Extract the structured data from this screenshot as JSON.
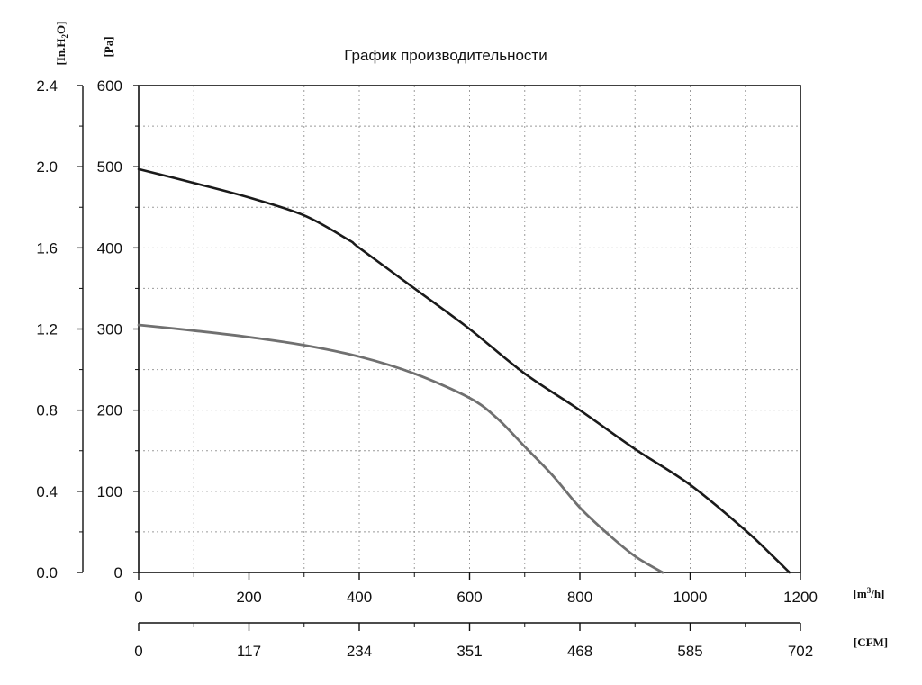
{
  "chart_data": {
    "type": "line",
    "title": "График производительности",
    "x_primary": {
      "unit_label": "m3/h",
      "ticks": [
        0,
        200,
        400,
        600,
        800,
        1000,
        1200
      ],
      "range": [
        0,
        1200
      ]
    },
    "x_secondary": {
      "unit_label": "[CFM]",
      "ticks": [
        0,
        117,
        234,
        351,
        468,
        585,
        702
      ]
    },
    "y_primary": {
      "unit_label": "[Pa]",
      "ticks": [
        0,
        100,
        200,
        300,
        400,
        500,
        600
      ],
      "range": [
        0,
        600
      ]
    },
    "y_secondary": {
      "unit_label": "In.H2O",
      "ticks": [
        "0.0",
        "0.4",
        "0.8",
        "1.2",
        "1.6",
        "2.0",
        "2.4"
      ]
    },
    "grid": true,
    "series": [
      {
        "color": "#1a1a1a",
        "points": [
          [
            0,
            497
          ],
          [
            100,
            480
          ],
          [
            200,
            462
          ],
          [
            300,
            440
          ],
          [
            380,
            410
          ],
          [
            400,
            400
          ],
          [
            500,
            350
          ],
          [
            600,
            300
          ],
          [
            700,
            245
          ],
          [
            800,
            200
          ],
          [
            900,
            152
          ],
          [
            1000,
            108
          ],
          [
            1100,
            52
          ],
          [
            1150,
            20
          ],
          [
            1180,
            0
          ]
        ]
      },
      {
        "color": "#707070",
        "points": [
          [
            0,
            305
          ],
          [
            100,
            298
          ],
          [
            200,
            290
          ],
          [
            300,
            280
          ],
          [
            400,
            266
          ],
          [
            500,
            245
          ],
          [
            600,
            215
          ],
          [
            650,
            190
          ],
          [
            700,
            155
          ],
          [
            750,
            120
          ],
          [
            800,
            80
          ],
          [
            850,
            48
          ],
          [
            900,
            20
          ],
          [
            950,
            0
          ]
        ]
      }
    ]
  }
}
